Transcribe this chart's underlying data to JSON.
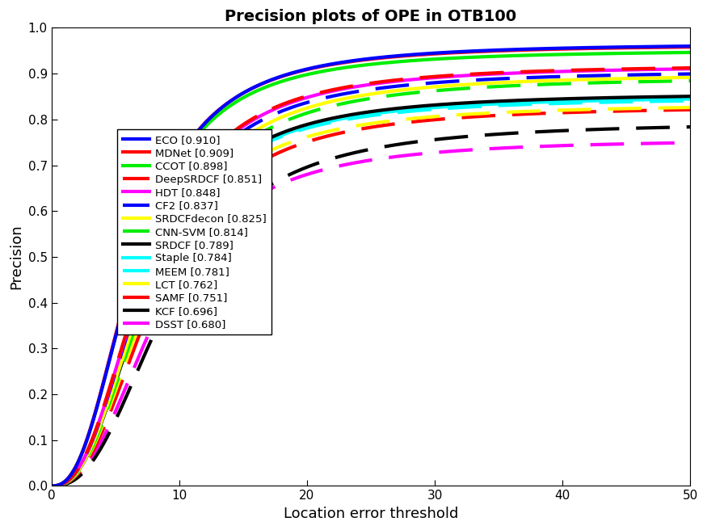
{
  "title": "Precision plots of OPE in OTB100",
  "xlabel": "Location error threshold",
  "ylabel": "Precision",
  "xlim": [
    0,
    50
  ],
  "ylim": [
    0,
    1
  ],
  "trackers": [
    {
      "name": "ECO [0.910]",
      "color": "#0000FF",
      "linestyle": "solid",
      "linewidth": 3.0,
      "score": 0.91,
      "final": 0.966
    },
    {
      "name": "MDNet [0.909]",
      "color": "#FF0000",
      "linestyle": "solid",
      "linewidth": 3.0,
      "score": 0.909,
      "final": 0.964
    },
    {
      "name": "CCOT [0.898]",
      "color": "#00EE00",
      "linestyle": "solid",
      "linewidth": 3.0,
      "score": 0.898,
      "final": 0.952
    },
    {
      "name": "DeepSRDCF [0.851]",
      "color": "#FF0000",
      "linestyle": "dashed",
      "linewidth": 3.0,
      "score": 0.851,
      "final": 0.92
    },
    {
      "name": "HDT [0.848]",
      "color": "#FF00FF",
      "linestyle": "solid",
      "linewidth": 3.0,
      "score": 0.848,
      "final": 0.918
    },
    {
      "name": "CF2 [0.837]",
      "color": "#0000FF",
      "linestyle": "dashed",
      "linewidth": 3.0,
      "score": 0.837,
      "final": 0.907
    },
    {
      "name": "SRDCFdecon [0.825]",
      "color": "#FFFF00",
      "linestyle": "solid",
      "linewidth": 3.0,
      "score": 0.825,
      "final": 0.9
    },
    {
      "name": "CNN-SVM [0.814]",
      "color": "#00EE00",
      "linestyle": "dashed",
      "linewidth": 3.0,
      "score": 0.814,
      "final": 0.893
    },
    {
      "name": "SRDCF [0.789]",
      "color": "#000000",
      "linestyle": "solid",
      "linewidth": 3.0,
      "score": 0.789,
      "final": 0.858
    },
    {
      "name": "Staple [0.784]",
      "color": "#00FFFF",
      "linestyle": "solid",
      "linewidth": 3.0,
      "score": 0.784,
      "final": 0.852
    },
    {
      "name": "MEEM [0.781]",
      "color": "#00FFFF",
      "linestyle": "dashed",
      "linewidth": 3.0,
      "score": 0.781,
      "final": 0.848
    },
    {
      "name": "LCT [0.762]",
      "color": "#FFFF00",
      "linestyle": "dashed",
      "linewidth": 3.0,
      "score": 0.762,
      "final": 0.834
    },
    {
      "name": "SAMF [0.751]",
      "color": "#FF0000",
      "linestyle": "dashed",
      "linewidth": 3.0,
      "score": 0.751,
      "final": 0.83
    },
    {
      "name": "KCF [0.696]",
      "color": "#000000",
      "linestyle": "dashed",
      "linewidth": 3.0,
      "score": 0.696,
      "final": 0.795
    },
    {
      "name": "DSST [0.680]",
      "color": "#FF00FF",
      "linestyle": "dashed",
      "linewidth": 3.0,
      "score": 0.68,
      "final": 0.758
    }
  ]
}
